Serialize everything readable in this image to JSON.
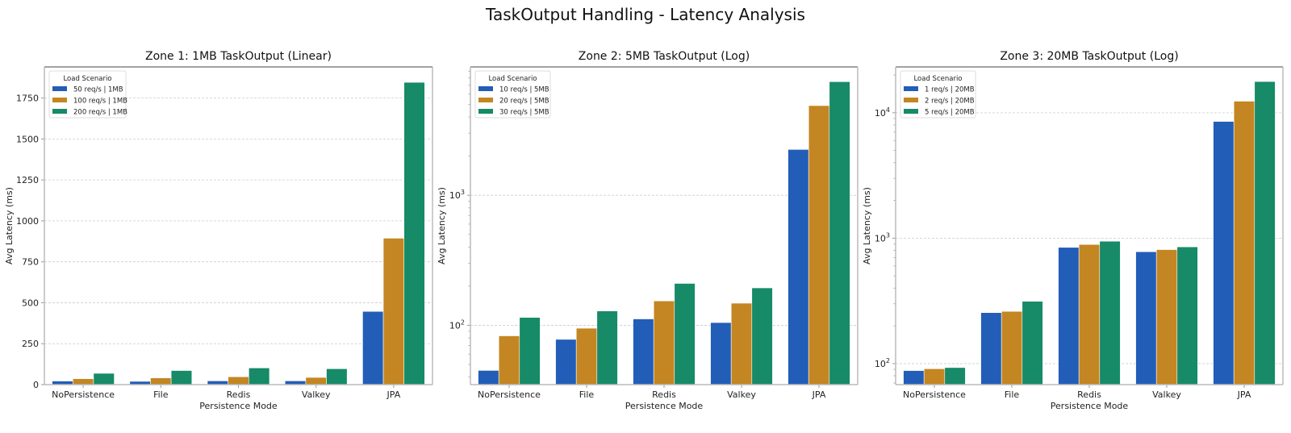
{
  "figure": {
    "title": "TaskOutput Handling - Latency Analysis",
    "colors": {
      "series1": "#225DB8",
      "series2": "#C38622",
      "series3": "#178A68",
      "grid": "#cccccc",
      "axis": "#999999"
    }
  },
  "chart_data": [
    {
      "type": "bar",
      "title": "Zone 1: 1MB TaskOutput (Linear)",
      "xlabel": "Persistence Mode",
      "ylabel": "Avg Latency (ms)",
      "yscale": "linear",
      "ylim": [
        0,
        1940
      ],
      "yticks": [
        0,
        250,
        500,
        750,
        1000,
        1250,
        1500,
        1750
      ],
      "ytick_labels": [
        "0",
        "250",
        "500",
        "750",
        "1000",
        "1250",
        "1500",
        "1750"
      ],
      "grid": "y dashed",
      "legend": {
        "title": "Load Scenario",
        "position": "upper left"
      },
      "categories": [
        "NoPersistence",
        "File",
        "Redis",
        "Valkey",
        "JPA"
      ],
      "series": [
        {
          "name": "50 req/s | 1MB",
          "values": [
            22,
            20,
            23,
            23,
            447
          ]
        },
        {
          "name": "100 req/s | 1MB",
          "values": [
            36,
            41,
            48,
            44,
            894
          ]
        },
        {
          "name": "200 req/s | 1MB",
          "values": [
            69,
            86,
            102,
            97,
            1846
          ]
        }
      ]
    },
    {
      "type": "bar",
      "title": "Zone 2: 5MB TaskOutput (Log)",
      "xlabel": "Persistence Mode",
      "ylabel": "Avg Latency (ms)",
      "yscale": "log",
      "ylim": [
        35,
        9700
      ],
      "yticks": [
        100,
        1000
      ],
      "ytick_labels": [
        "10^2",
        "10^3"
      ],
      "grid": "y dashed",
      "legend": {
        "title": "Load Scenario",
        "position": "upper left"
      },
      "categories": [
        "NoPersistence",
        "File",
        "Redis",
        "Valkey",
        "JPA"
      ],
      "series": [
        {
          "name": "10 req/s | 5MB",
          "values": [
            45,
            78,
            112,
            105,
            2250
          ]
        },
        {
          "name": "20 req/s | 5MB",
          "values": [
            83,
            95,
            154,
            148,
            4890
          ]
        },
        {
          "name": "30 req/s | 5MB",
          "values": [
            115,
            129,
            210,
            194,
            7470
          ]
        }
      ]
    },
    {
      "type": "bar",
      "title": "Zone 3: 20MB TaskOutput (Log)",
      "xlabel": "Persistence Mode",
      "ylabel": "Avg Latency (ms)",
      "yscale": "log",
      "ylim": [
        68,
        23200
      ],
      "yticks": [
        100,
        1000,
        10000
      ],
      "ytick_labels": [
        "10^2",
        "10^3",
        "10^4"
      ],
      "grid": "y dashed",
      "legend": {
        "title": "Load Scenario",
        "position": "upper left"
      },
      "categories": [
        "NoPersistence",
        "File",
        "Redis",
        "Valkey",
        "JPA"
      ],
      "series": [
        {
          "name": "1 req/s | 20MB",
          "values": [
            88,
            255,
            845,
            780,
            8530
          ]
        },
        {
          "name": "2 req/s | 20MB",
          "values": [
            91,
            261,
            891,
            811,
            12370
          ]
        },
        {
          "name": "5 req/s | 20MB",
          "values": [
            93,
            314,
            946,
            853,
            17750
          ]
        }
      ]
    }
  ]
}
